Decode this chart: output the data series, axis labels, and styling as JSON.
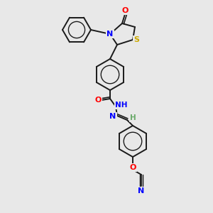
{
  "bg_color": "#e8e8e8",
  "bond_color": "#1a1a1a",
  "atom_colors": {
    "O": "#ff0000",
    "N": "#0000ff",
    "S": "#ccaa00",
    "H": "#6aaa6a"
  },
  "figsize": [
    3.0,
    3.0
  ],
  "dpi": 100,
  "bond_lw": 1.4,
  "ring_r": 22,
  "benz_r": 22
}
